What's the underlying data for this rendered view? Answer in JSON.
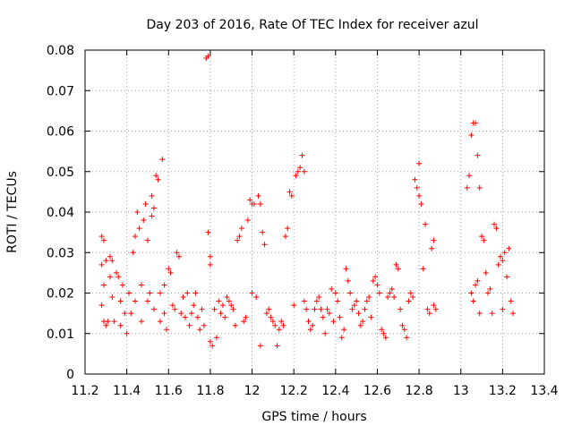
{
  "chart_data": {
    "type": "scatter",
    "title": "Day 203 of 2016, Rate Of TEC Index for receiver azul",
    "xlabel": "GPS time / hours",
    "ylabel": "ROTI / TECUs",
    "xlim": [
      11.2,
      13.4
    ],
    "ylim": [
      0,
      0.08
    ],
    "x_ticks": [
      11.2,
      11.4,
      11.6,
      11.8,
      12.0,
      12.2,
      12.4,
      12.6,
      12.8,
      13.0,
      13.2,
      13.4
    ],
    "x_tick_labels": [
      "11.2",
      "11.4",
      "11.6",
      "11.8",
      "12",
      "12.2",
      "12.4",
      "12.6",
      "12.8",
      "13",
      "13.2",
      "13.4"
    ],
    "y_ticks": [
      0,
      0.01,
      0.02,
      0.03,
      0.04,
      0.05,
      0.06,
      0.07,
      0.08
    ],
    "y_tick_labels": [
      "0",
      "0.01",
      "0.02",
      "0.03",
      "0.04",
      "0.05",
      "0.06",
      "0.07",
      "0.08"
    ],
    "grid": true,
    "marker": "+",
    "marker_color": "#ff0000",
    "series": [
      {
        "name": "ROTI",
        "points": [
          [
            11.28,
            0.034
          ],
          [
            11.29,
            0.033
          ],
          [
            11.28,
            0.027
          ],
          [
            11.3,
            0.028
          ],
          [
            11.29,
            0.022
          ],
          [
            11.28,
            0.017
          ],
          [
            11.29,
            0.013
          ],
          [
            11.3,
            0.012
          ],
          [
            11.31,
            0.013
          ],
          [
            11.32,
            0.029
          ],
          [
            11.33,
            0.028
          ],
          [
            11.32,
            0.024
          ],
          [
            11.33,
            0.019
          ],
          [
            11.34,
            0.013
          ],
          [
            11.35,
            0.025
          ],
          [
            11.36,
            0.024
          ],
          [
            11.37,
            0.018
          ],
          [
            11.37,
            0.012
          ],
          [
            11.38,
            0.022
          ],
          [
            11.39,
            0.015
          ],
          [
            11.4,
            0.01
          ],
          [
            11.41,
            0.02
          ],
          [
            11.42,
            0.015
          ],
          [
            11.43,
            0.03
          ],
          [
            11.44,
            0.018
          ],
          [
            11.44,
            0.034
          ],
          [
            11.45,
            0.04
          ],
          [
            11.46,
            0.036
          ],
          [
            11.47,
            0.022
          ],
          [
            11.47,
            0.013
          ],
          [
            11.48,
            0.038
          ],
          [
            11.49,
            0.042
          ],
          [
            11.5,
            0.033
          ],
          [
            11.5,
            0.018
          ],
          [
            11.51,
            0.02
          ],
          [
            11.52,
            0.044
          ],
          [
            11.52,
            0.039
          ],
          [
            11.53,
            0.041
          ],
          [
            11.53,
            0.016
          ],
          [
            11.54,
            0.049
          ],
          [
            11.55,
            0.048
          ],
          [
            11.56,
            0.02
          ],
          [
            11.56,
            0.013
          ],
          [
            11.57,
            0.053
          ],
          [
            11.58,
            0.022
          ],
          [
            11.58,
            0.015
          ],
          [
            11.59,
            0.011
          ],
          [
            11.6,
            0.026
          ],
          [
            11.61,
            0.025
          ],
          [
            11.62,
            0.017
          ],
          [
            11.63,
            0.016
          ],
          [
            11.64,
            0.03
          ],
          [
            11.65,
            0.029
          ],
          [
            11.66,
            0.015
          ],
          [
            11.67,
            0.019
          ],
          [
            11.68,
            0.014
          ],
          [
            11.69,
            0.02
          ],
          [
            11.7,
            0.012
          ],
          [
            11.71,
            0.015
          ],
          [
            11.72,
            0.017
          ],
          [
            11.73,
            0.02
          ],
          [
            11.74,
            0.014
          ],
          [
            11.75,
            0.011
          ],
          [
            11.76,
            0.016
          ],
          [
            11.77,
            0.012
          ],
          [
            11.78,
            0.078
          ],
          [
            11.79,
            0.0785
          ],
          [
            11.79,
            0.035
          ],
          [
            11.8,
            0.029
          ],
          [
            11.8,
            0.027
          ],
          [
            11.8,
            0.008
          ],
          [
            11.81,
            0.007
          ],
          [
            11.82,
            0.016
          ],
          [
            11.83,
            0.009
          ],
          [
            11.84,
            0.018
          ],
          [
            11.85,
            0.015
          ],
          [
            11.86,
            0.017
          ],
          [
            11.87,
            0.014
          ],
          [
            11.88,
            0.019
          ],
          [
            11.89,
            0.018
          ],
          [
            11.9,
            0.017
          ],
          [
            11.91,
            0.016
          ],
          [
            11.92,
            0.012
          ],
          [
            11.93,
            0.033
          ],
          [
            11.94,
            0.034
          ],
          [
            11.95,
            0.036
          ],
          [
            11.96,
            0.013
          ],
          [
            11.97,
            0.014
          ],
          [
            11.98,
            0.038
          ],
          [
            11.99,
            0.043
          ],
          [
            12.0,
            0.042
          ],
          [
            12.0,
            0.02
          ],
          [
            12.01,
            0.042
          ],
          [
            12.02,
            0.019
          ],
          [
            12.03,
            0.044
          ],
          [
            12.04,
            0.042
          ],
          [
            12.04,
            0.007
          ],
          [
            12.05,
            0.035
          ],
          [
            12.06,
            0.032
          ],
          [
            12.07,
            0.015
          ],
          [
            12.08,
            0.016
          ],
          [
            12.09,
            0.014
          ],
          [
            12.1,
            0.013
          ],
          [
            12.11,
            0.012
          ],
          [
            12.12,
            0.007
          ],
          [
            12.13,
            0.011
          ],
          [
            12.14,
            0.013
          ],
          [
            12.15,
            0.012
          ],
          [
            12.16,
            0.034
          ],
          [
            12.17,
            0.036
          ],
          [
            12.18,
            0.045
          ],
          [
            12.19,
            0.044
          ],
          [
            12.2,
            0.017
          ],
          [
            12.21,
            0.049
          ],
          [
            12.22,
            0.05
          ],
          [
            12.23,
            0.051
          ],
          [
            12.24,
            0.054
          ],
          [
            12.25,
            0.05
          ],
          [
            12.25,
            0.018
          ],
          [
            12.26,
            0.016
          ],
          [
            12.27,
            0.013
          ],
          [
            12.28,
            0.011
          ],
          [
            12.29,
            0.012
          ],
          [
            12.3,
            0.016
          ],
          [
            12.31,
            0.018
          ],
          [
            12.32,
            0.019
          ],
          [
            12.33,
            0.016
          ],
          [
            12.34,
            0.014
          ],
          [
            12.35,
            0.01
          ],
          [
            12.36,
            0.016
          ],
          [
            12.37,
            0.015
          ],
          [
            12.38,
            0.021
          ],
          [
            12.39,
            0.013
          ],
          [
            12.4,
            0.02
          ],
          [
            12.41,
            0.018
          ],
          [
            12.42,
            0.014
          ],
          [
            12.43,
            0.009
          ],
          [
            12.44,
            0.011
          ],
          [
            12.45,
            0.026
          ],
          [
            12.46,
            0.023
          ],
          [
            12.47,
            0.02
          ],
          [
            12.48,
            0.016
          ],
          [
            12.49,
            0.017
          ],
          [
            12.5,
            0.018
          ],
          [
            12.51,
            0.015
          ],
          [
            12.52,
            0.012
          ],
          [
            12.53,
            0.013
          ],
          [
            12.54,
            0.016
          ],
          [
            12.55,
            0.018
          ],
          [
            12.56,
            0.019
          ],
          [
            12.57,
            0.014
          ],
          [
            12.58,
            0.023
          ],
          [
            12.59,
            0.024
          ],
          [
            12.6,
            0.022
          ],
          [
            12.61,
            0.02
          ],
          [
            12.62,
            0.011
          ],
          [
            12.63,
            0.01
          ],
          [
            12.64,
            0.009
          ],
          [
            12.65,
            0.019
          ],
          [
            12.66,
            0.02
          ],
          [
            12.67,
            0.021
          ],
          [
            12.68,
            0.019
          ],
          [
            12.69,
            0.027
          ],
          [
            12.7,
            0.026
          ],
          [
            12.71,
            0.016
          ],
          [
            12.72,
            0.012
          ],
          [
            12.73,
            0.011
          ],
          [
            12.74,
            0.009
          ],
          [
            12.75,
            0.018
          ],
          [
            12.76,
            0.02
          ],
          [
            12.77,
            0.019
          ],
          [
            12.78,
            0.048
          ],
          [
            12.79,
            0.046
          ],
          [
            12.8,
            0.052
          ],
          [
            12.8,
            0.044
          ],
          [
            12.81,
            0.042
          ],
          [
            12.82,
            0.026
          ],
          [
            12.83,
            0.037
          ],
          [
            12.84,
            0.016
          ],
          [
            12.85,
            0.015
          ],
          [
            12.86,
            0.031
          ],
          [
            12.87,
            0.033
          ],
          [
            12.87,
            0.017
          ],
          [
            12.88,
            0.016
          ],
          [
            13.03,
            0.046
          ],
          [
            13.04,
            0.049
          ],
          [
            13.05,
            0.059
          ],
          [
            13.06,
            0.062
          ],
          [
            13.07,
            0.062
          ],
          [
            13.08,
            0.054
          ],
          [
            13.09,
            0.046
          ],
          [
            13.05,
            0.02
          ],
          [
            13.06,
            0.018
          ],
          [
            13.07,
            0.022
          ],
          [
            13.08,
            0.023
          ],
          [
            13.09,
            0.015
          ],
          [
            13.1,
            0.034
          ],
          [
            13.11,
            0.033
          ],
          [
            13.12,
            0.025
          ],
          [
            13.13,
            0.02
          ],
          [
            13.14,
            0.021
          ],
          [
            13.15,
            0.015
          ],
          [
            13.16,
            0.037
          ],
          [
            13.17,
            0.036
          ],
          [
            13.18,
            0.027
          ],
          [
            13.19,
            0.029
          ],
          [
            13.2,
            0.028
          ],
          [
            13.2,
            0.016
          ],
          [
            13.21,
            0.03
          ],
          [
            13.22,
            0.024
          ],
          [
            13.23,
            0.031
          ],
          [
            13.24,
            0.018
          ],
          [
            13.25,
            0.015
          ]
        ]
      }
    ]
  }
}
